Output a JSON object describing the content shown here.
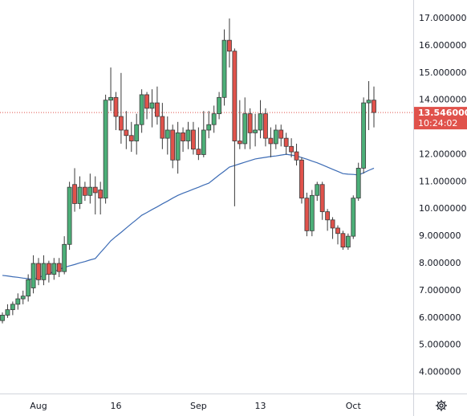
{
  "chart_data": {
    "type": "candlestick",
    "categories": [
      null,
      null,
      null,
      null,
      null,
      null,
      null,
      "Aug",
      null,
      null,
      null,
      null,
      null,
      null,
      null,
      null,
      null,
      null,
      null,
      null,
      null,
      null,
      "16",
      null,
      null,
      null,
      null,
      null,
      null,
      null,
      null,
      null,
      null,
      null,
      null,
      null,
      null,
      null,
      "Sep",
      null,
      null,
      null,
      null,
      null,
      null,
      null,
      null,
      null,
      null,
      null,
      "13",
      null,
      null,
      null,
      null,
      null,
      null,
      null,
      null,
      null,
      null,
      null,
      null,
      null,
      null,
      null,
      null,
      null,
      "Oct",
      null,
      null,
      null,
      null
    ],
    "open": [
      5.9,
      6.1,
      6.3,
      6.5,
      6.7,
      6.8,
      7.1,
      8.0,
      7.4,
      8.0,
      7.6,
      8.0,
      7.7,
      8.7,
      10.9,
      10.2,
      10.8,
      10.5,
      10.8,
      10.7,
      10.4,
      14.0,
      14.1,
      13.4,
      12.9,
      12.7,
      12.5,
      13.1,
      14.2,
      13.7,
      13.9,
      13.4,
      12.6,
      12.9,
      11.8,
      12.8,
      12.5,
      12.9,
      12.2,
      12.0,
      12.9,
      13.1,
      13.5,
      14.1,
      16.2,
      15.8,
      12.5,
      12.4,
      13.5,
      12.8,
      12.9,
      13.5,
      12.6,
      12.4,
      12.9,
      12.6,
      12.3,
      12.1,
      11.8,
      10.4,
      9.2,
      10.5,
      10.9,
      9.9,
      9.6,
      9.3,
      9.1,
      8.6,
      9.0,
      10.4,
      11.5,
      13.9,
      14.0
    ],
    "high": [
      6.2,
      6.5,
      6.6,
      6.9,
      7.0,
      7.6,
      8.3,
      8.2,
      8.3,
      8.1,
      8.2,
      8.2,
      9.0,
      11.0,
      11.5,
      11.2,
      11.0,
      11.3,
      11.2,
      11.0,
      14.2,
      15.2,
      14.3,
      15.0,
      13.6,
      13.2,
      13.5,
      14.4,
      14.3,
      14.4,
      14.5,
      13.9,
      13.4,
      13.1,
      13.2,
      13.0,
      13.2,
      13.2,
      13.0,
      13.6,
      13.6,
      13.8,
      14.3,
      16.6,
      17.0,
      15.9,
      14.0,
      14.1,
      13.7,
      13.5,
      14.0,
      13.7,
      13.0,
      13.1,
      13.1,
      12.8,
      12.6,
      12.4,
      11.9,
      10.6,
      10.7,
      11.0,
      11.0,
      10.0,
      9.7,
      9.4,
      9.2,
      9.1,
      10.5,
      11.7,
      14.1,
      14.7,
      14.5
    ],
    "low": [
      5.8,
      6.0,
      6.1,
      6.3,
      6.5,
      6.6,
      6.9,
      7.2,
      7.2,
      7.3,
      7.4,
      7.5,
      7.6,
      8.5,
      9.9,
      10.0,
      10.3,
      10.2,
      9.8,
      9.8,
      10.2,
      13.6,
      12.9,
      12.4,
      12.2,
      12.1,
      12.0,
      12.8,
      13.3,
      13.0,
      13.1,
      12.2,
      12.0,
      11.5,
      11.3,
      12.1,
      12.2,
      12.0,
      11.8,
      11.9,
      12.6,
      12.8,
      13.3,
      13.8,
      15.2,
      10.1,
      12.2,
      12.2,
      12.2,
      12.3,
      12.6,
      12.3,
      11.9,
      12.2,
      12.3,
      12.0,
      11.9,
      11.6,
      10.2,
      9.0,
      9.0,
      10.3,
      9.6,
      9.2,
      8.9,
      8.7,
      8.5,
      8.5,
      8.9,
      10.3,
      11.3,
      12.9,
      13.0
    ],
    "close": [
      6.1,
      6.3,
      6.5,
      6.7,
      6.8,
      7.4,
      8.0,
      7.4,
      8.0,
      7.6,
      8.0,
      7.7,
      8.7,
      10.8,
      10.2,
      10.8,
      10.5,
      10.8,
      10.6,
      10.4,
      14.0,
      14.1,
      13.4,
      12.9,
      12.7,
      12.5,
      13.1,
      14.2,
      13.7,
      13.9,
      13.4,
      12.6,
      12.9,
      11.8,
      12.8,
      12.5,
      12.9,
      12.2,
      12.0,
      12.9,
      13.1,
      13.5,
      14.1,
      16.2,
      15.8,
      12.5,
      12.4,
      13.5,
      12.8,
      12.9,
      13.5,
      12.6,
      12.4,
      12.9,
      12.6,
      12.3,
      12.1,
      11.8,
      10.4,
      9.2,
      10.5,
      10.9,
      9.9,
      9.6,
      9.3,
      9.1,
      8.6,
      9.0,
      10.4,
      11.5,
      13.9,
      14.0,
      13.546
    ],
    "up_color": "#4caf78",
    "down_color": "#e0524b",
    "wick_color": "#3a3a3a",
    "moving_average": {
      "color": "#3d6cb5",
      "values": [
        7.56,
        7.54,
        7.51,
        7.49,
        7.46,
        7.44,
        7.41,
        7.48,
        7.56,
        7.63,
        7.7,
        7.78,
        7.85,
        7.91,
        7.96,
        8.02,
        8.07,
        8.13,
        8.18,
        8.4,
        8.61,
        8.83,
        8.99,
        9.14,
        9.3,
        9.46,
        9.61,
        9.77,
        9.87,
        9.98,
        10.08,
        10.19,
        10.29,
        10.4,
        10.5,
        10.58,
        10.65,
        10.73,
        10.8,
        10.88,
        10.95,
        11.1,
        11.25,
        11.39,
        11.54,
        11.6,
        11.66,
        11.72,
        11.78,
        11.84,
        11.87,
        11.9,
        11.93,
        11.95,
        11.98,
        12.01,
        11.98,
        11.95,
        11.89,
        11.83,
        11.76,
        11.7,
        11.62,
        11.54,
        11.46,
        11.38,
        11.3,
        11.28,
        11.27,
        11.25,
        11.33,
        11.42,
        11.5
      ]
    },
    "last_price": {
      "value": 13.546,
      "label": "13.546000",
      "color": "#e0524b"
    },
    "countdown": "10:24:02",
    "ylim": [
      3.22,
      17.68
    ],
    "yticks": [
      {
        "value": 17,
        "label": "17.000000"
      },
      {
        "value": 16,
        "label": "16.000000"
      },
      {
        "value": 15,
        "label": "15.000000"
      },
      {
        "value": 14,
        "label": "14.000000"
      },
      {
        "value": 12,
        "label": "12.000000"
      },
      {
        "value": 11,
        "label": "11.000000"
      },
      {
        "value": 10,
        "label": "10.000000"
      },
      {
        "value": 9,
        "label": "9.000000"
      },
      {
        "value": 8,
        "label": "8.000000"
      },
      {
        "value": 7,
        "label": "7.000000"
      },
      {
        "value": 6,
        "label": "6.000000"
      },
      {
        "value": 5,
        "label": "5.000000"
      },
      {
        "value": 4,
        "label": "4.000000"
      }
    ]
  }
}
